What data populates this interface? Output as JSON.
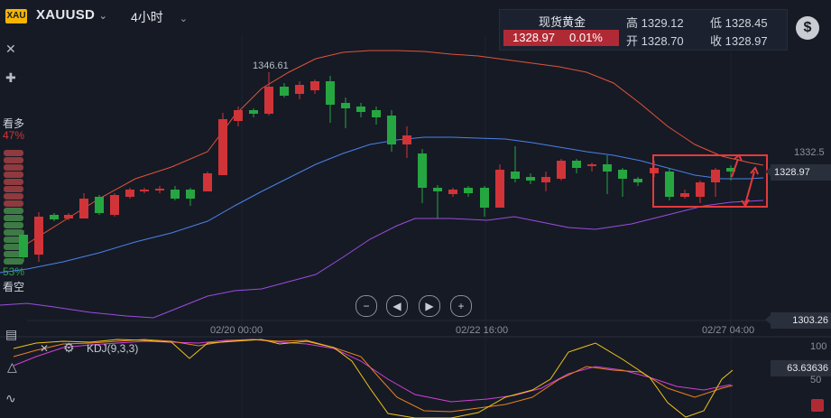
{
  "header": {
    "symbol_logo": "XAU",
    "symbol": "XAUUSD",
    "timeframe": "4小时"
  },
  "quote": {
    "name": "现货黄金",
    "price": "1328.97",
    "change_pct": "0.01%",
    "high_label": "高",
    "high": "1329.12",
    "low_label": "低",
    "low": "1328.45",
    "open_label": "开",
    "open": "1328.70",
    "close_label": "收",
    "close": "1328.97"
  },
  "sentiment": {
    "bull_label": "看多",
    "bull_pct": "47%",
    "bear_pct": "53%",
    "bear_label": "看空",
    "bull_fraction": 0.47
  },
  "price_axis": {
    "high_annotation": "1346.61",
    "right_top": "1332.5",
    "current": "1328.97",
    "lower": "1303.26"
  },
  "dates": [
    "02/20 00:00",
    "02/22 16:00",
    "02/27 04:00"
  ],
  "indicator": {
    "name": "KDJ(9,3,3)",
    "axis_100": "100",
    "axis_50": "50",
    "value": "63.63636"
  },
  "colors": {
    "up": "#26a641",
    "down": "#d13438",
    "upper_band": "#e0533a",
    "middle_band": "#4a82e8",
    "lower_band": "#9b4de0",
    "k_line": "#f0c419",
    "d_line": "#e8821e",
    "j_line": "#d43fd8",
    "highlight": "#e23a3a"
  },
  "icons": [
    "dollar-icon",
    "close-icon",
    "crosshair-icon",
    "zoom-out-icon",
    "skip-back-icon",
    "skip-forward-icon",
    "zoom-in-icon",
    "settings-icon",
    "chart-icon",
    "drawing-icon",
    "wave-icon"
  ]
}
